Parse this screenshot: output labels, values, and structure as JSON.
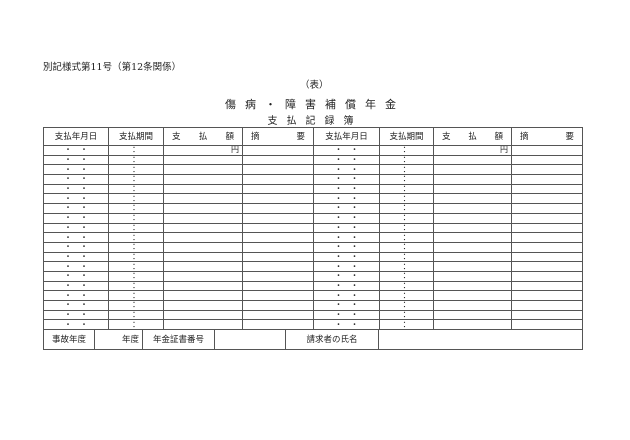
{
  "caption": "別記様式第11号（第12条関係）",
  "side_label": "（表）",
  "title": "傷病・障害補償年金",
  "subtitle": "支払記録簿",
  "columns": [
    "支払年月日",
    "支払期間",
    "支　払　額",
    "摘　　要"
  ],
  "amount_col_chars": [
    "支",
    "払",
    "額"
  ],
  "remarks_col_chars": [
    "摘",
    "要"
  ],
  "row_template": {
    "date": "・　・",
    "period": "：",
    "unit": "円"
  },
  "row_count": 19,
  "footer": {
    "accident_year_label": "事故年度",
    "year_suffix": "年度",
    "certificate_label": "年金証書番号",
    "claimant_label": "請求者の氏名"
  }
}
